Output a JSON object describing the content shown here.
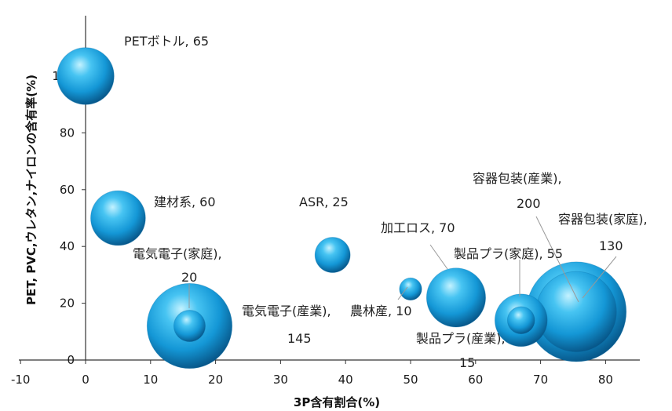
{
  "chart_data": {
    "type": "scatter",
    "subtype": "bubble",
    "xlabel": "3P含有割合(%)",
    "ylabel": "PET, PVC,ウレタン,ナイロンの含有率(%)",
    "xlim": [
      -10,
      85
    ],
    "ylim": [
      0,
      107
    ],
    "xticks": [
      -10,
      0,
      10,
      20,
      30,
      40,
      50,
      60,
      70,
      80
    ],
    "yticks": [
      0,
      20,
      40,
      60,
      80,
      100
    ],
    "grid": false,
    "legend": "none",
    "colors": {
      "bubble": "#18a3e0",
      "highlight": "#bff0ff",
      "shade": "#04517d"
    },
    "points": [
      {
        "label": "PETボトル, 65",
        "x": 0,
        "y": 100,
        "size": 65
      },
      {
        "label": "建材系, 60",
        "x": 5,
        "y": 50,
        "size": 60
      },
      {
        "label": "ASR, 25",
        "x": 38,
        "y": 37,
        "size": 25
      },
      {
        "label": "電気電子(家庭), 20",
        "x": 16,
        "y": 12,
        "size": 20
      },
      {
        "label": "電気電子(産業), 145",
        "x": 16,
        "y": 12,
        "size": 145
      },
      {
        "label": "農林産, 10",
        "x": 50,
        "y": 25,
        "size": 10
      },
      {
        "label": "加工ロス, 70",
        "x": 57,
        "y": 22,
        "size": 70
      },
      {
        "label": "製品プラ(家庭), 55",
        "x": 67,
        "y": 14,
        "size": 55
      },
      {
        "label": "製品プラ(産業), 15",
        "x": 67,
        "y": 14,
        "size": 15
      },
      {
        "label": "容器包装(家庭), 130",
        "x": 75.5,
        "y": 17,
        "size": 130
      },
      {
        "label": "容器包装(産業), 200",
        "x": 75.5,
        "y": 17,
        "size": 200
      }
    ],
    "label_text": {
      "pet": "PETボトル, 65",
      "kenzai": "建材系, 60",
      "asr": "ASR, 25",
      "denki_katei_1": "電気電子(家庭),",
      "denki_katei_2": "20",
      "denki_sangyo_1": "電気電子(産業),",
      "denki_sangyo_2": "145",
      "norin": "農林産, 10",
      "kako": "加工ロス, 70",
      "seihin_katei": "製品プラ(家庭), 55",
      "seihin_sangyo_1": "製品プラ(産業),",
      "seihin_sangyo_2": "15",
      "youki_sangyo_1": "容器包装(産業),",
      "youki_sangyo_2": "200",
      "youki_katei_1": "容器包装(家庭),",
      "youki_katei_2": "130"
    }
  }
}
